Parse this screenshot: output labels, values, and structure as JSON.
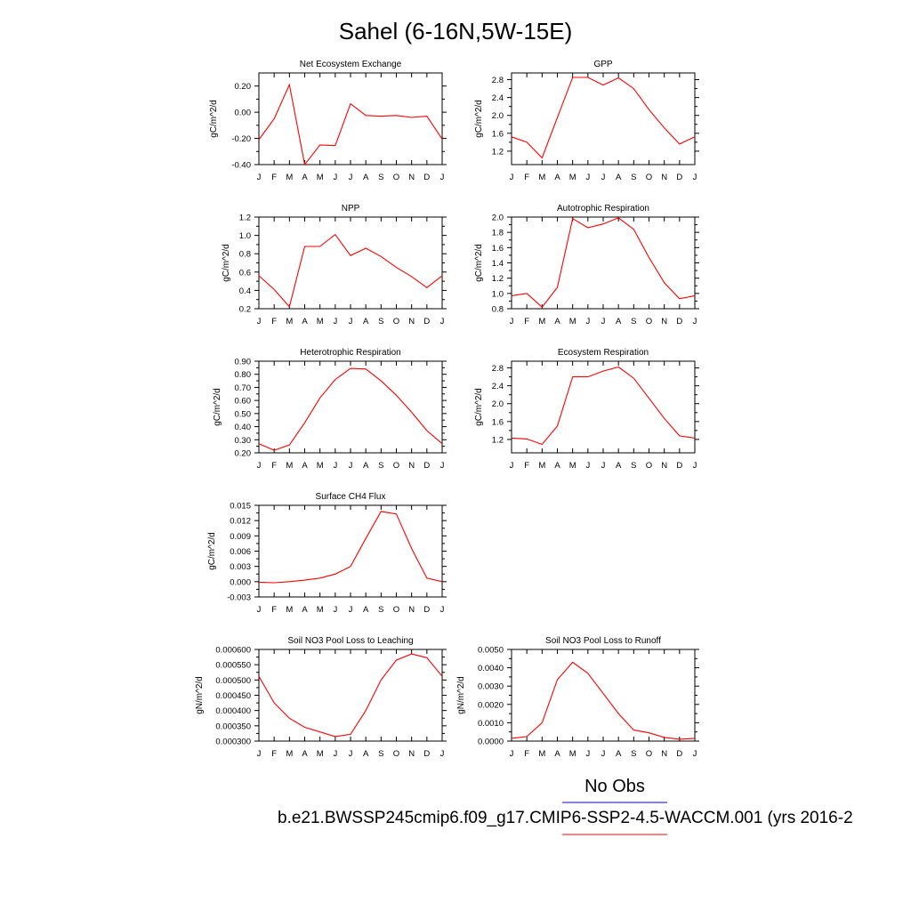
{
  "title": "Sahel (6-16N,5W-15E)",
  "month_labels": [
    "J",
    "F",
    "M",
    "A",
    "M",
    "J",
    "J",
    "A",
    "S",
    "O",
    "N",
    "D",
    "J"
  ],
  "legend": {
    "obs_label": "No Obs",
    "obs_color": "#0000ff",
    "case_label": "b.e21.BWSSP245cmip6.f09_g17.CMIP6-SSP2-4.5-WACCM.001 (yrs 2016-2",
    "case_color": "#ff0000"
  },
  "chart_data": [
    {
      "type": "line",
      "title": "Net Ecosystem Exchange",
      "ylabel": "gC/m^2/d",
      "ylim": [
        -0.4,
        0.3
      ],
      "yticks": [
        "-0.40",
        "-0.20",
        "0.00",
        "0.20"
      ],
      "ytick_values": [
        -0.4,
        -0.2,
        0.0,
        0.2
      ],
      "series": [
        {
          "color": "#ff0000",
          "values": [
            -0.21,
            -0.05,
            0.21,
            -0.4,
            -0.25,
            -0.255,
            0.065,
            -0.025,
            -0.03,
            -0.025,
            -0.04,
            -0.03,
            -0.205
          ]
        }
      ]
    },
    {
      "type": "line",
      "title": "GPP",
      "ylabel": "gC/m^2/d",
      "ylim": [
        0.9,
        2.95
      ],
      "yticks": [
        "1.2",
        "1.6",
        "2.0",
        "2.4",
        "2.8"
      ],
      "ytick_values": [
        1.2,
        1.6,
        2.0,
        2.4,
        2.8
      ],
      "series": [
        {
          "color": "#ff0000",
          "values": [
            1.52,
            1.4,
            1.05,
            1.95,
            2.85,
            2.85,
            2.68,
            2.84,
            2.6,
            2.13,
            1.72,
            1.36,
            1.52
          ]
        }
      ]
    },
    {
      "type": "line",
      "title": "NPP",
      "ylabel": "gC/m^2/d",
      "ylim": [
        0.2,
        1.2
      ],
      "yticks": [
        "0.2",
        "0.4",
        "0.6",
        "0.8",
        "1.0",
        "1.2"
      ],
      "ytick_values": [
        0.2,
        0.4,
        0.6,
        0.8,
        1.0,
        1.2
      ],
      "series": [
        {
          "color": "#ff0000",
          "values": [
            0.56,
            0.41,
            0.22,
            0.88,
            0.88,
            1.01,
            0.78,
            0.86,
            0.77,
            0.65,
            0.55,
            0.43,
            0.56
          ]
        }
      ]
    },
    {
      "type": "line",
      "title": "Autotrophic Respiration",
      "ylabel": "gC/m^2/d",
      "ylim": [
        0.8,
        2.0
      ],
      "yticks": [
        "0.8",
        "1.0",
        "1.2",
        "1.4",
        "1.6",
        "1.8",
        "2.0"
      ],
      "ytick_values": [
        0.8,
        1.0,
        1.2,
        1.4,
        1.6,
        1.8,
        2.0
      ],
      "series": [
        {
          "color": "#ff0000",
          "values": [
            0.97,
            1.0,
            0.82,
            1.08,
            1.98,
            1.86,
            1.91,
            1.99,
            1.84,
            1.47,
            1.14,
            0.93,
            0.97
          ]
        }
      ]
    },
    {
      "type": "line",
      "title": "Heterotrophic Respiration",
      "ylabel": "gC/m^2/d",
      "ylim": [
        0.2,
        0.9
      ],
      "yticks": [
        "0.20",
        "0.30",
        "0.40",
        "0.50",
        "0.60",
        "0.70",
        "0.80",
        "0.90"
      ],
      "ytick_values": [
        0.2,
        0.3,
        0.4,
        0.5,
        0.6,
        0.7,
        0.8,
        0.9
      ],
      "series": [
        {
          "color": "#ff0000",
          "values": [
            0.27,
            0.22,
            0.26,
            0.43,
            0.62,
            0.76,
            0.845,
            0.84,
            0.75,
            0.64,
            0.51,
            0.37,
            0.27
          ]
        }
      ]
    },
    {
      "type": "line",
      "title": "Ecosystem Respiration",
      "ylabel": "gC/m^2/d",
      "ylim": [
        0.9,
        2.95
      ],
      "yticks": [
        "1.2",
        "1.6",
        "2.0",
        "2.4",
        "2.8"
      ],
      "ytick_values": [
        1.2,
        1.6,
        2.0,
        2.4,
        2.8
      ],
      "series": [
        {
          "color": "#ff0000",
          "values": [
            1.23,
            1.21,
            1.09,
            1.5,
            2.6,
            2.6,
            2.73,
            2.82,
            2.57,
            2.12,
            1.67,
            1.28,
            1.23
          ]
        }
      ]
    },
    {
      "type": "line",
      "title": "Surface CH4 Flux",
      "ylabel": "gC/m^2/d",
      "ylim": [
        -0.003,
        0.015
      ],
      "yticks": [
        "-0.003",
        "0.000",
        "0.003",
        "0.006",
        "0.009",
        "0.012",
        "0.015"
      ],
      "ytick_values": [
        -0.003,
        0.0,
        0.003,
        0.006,
        0.009,
        0.012,
        0.015
      ],
      "series": [
        {
          "color": "#ff0000",
          "values": [
            -0.0001,
            -0.0002,
            0.0,
            0.0003,
            0.0007,
            0.0015,
            0.003,
            0.0085,
            0.0138,
            0.0133,
            0.0065,
            0.0007,
            0.0
          ]
        }
      ]
    },
    {
      "type": "line",
      "title": "Soil NO3 Pool Loss to Leaching",
      "ylabel": "gN/m^2/d",
      "ylim": [
        0.0003,
        0.0006
      ],
      "yticks": [
        "0.000300",
        "0.000350",
        "0.000400",
        "0.000450",
        "0.000500",
        "0.000550",
        "0.000600"
      ],
      "ytick_values": [
        0.0003,
        0.00035,
        0.0004,
        0.00045,
        0.0005,
        0.00055,
        0.0006
      ],
      "series": [
        {
          "color": "#ff0000",
          "values": [
            0.000512,
            0.000425,
            0.000375,
            0.000345,
            0.00033,
            0.000315,
            0.000322,
            0.0004,
            0.0005,
            0.000565,
            0.000585,
            0.000573,
            0.000512
          ]
        }
      ]
    },
    {
      "type": "line",
      "title": "Soil NO3 Pool Loss to Runoff",
      "ylabel": "gN/m^2/d",
      "ylim": [
        0.0,
        0.005
      ],
      "yticks": [
        "0.0000",
        "0.0010",
        "0.0020",
        "0.0030",
        "0.0040",
        "0.0050"
      ],
      "ytick_values": [
        0.0,
        0.001,
        0.002,
        0.003,
        0.004,
        0.005
      ],
      "series": [
        {
          "color": "#ff0000",
          "values": [
            0.00015,
            0.00025,
            0.001,
            0.00335,
            0.0043,
            0.0037,
            0.0026,
            0.0015,
            0.0006,
            0.00045,
            0.0002,
            0.0001,
            0.00015
          ]
        }
      ]
    }
  ]
}
